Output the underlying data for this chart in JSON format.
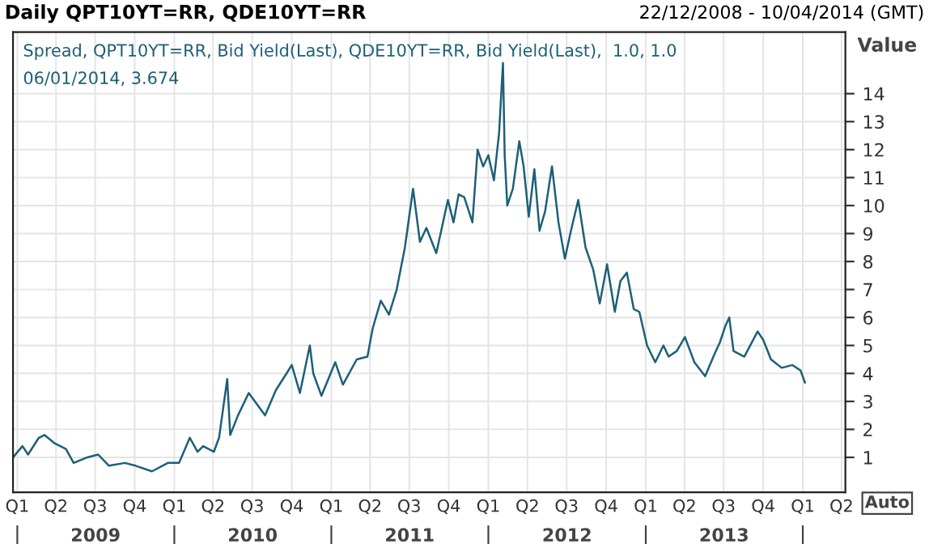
{
  "chart_data": {
    "type": "line",
    "title": "Daily QPT10YT=RR, QDE10YT=RR",
    "subtitle": "22/12/2008 - 10/04/2014 (GMT)",
    "ylabel": "Value",
    "annotations": [
      "06/01/2014, 3.674",
      "Auto"
    ],
    "xlim": [
      "2008-12-22",
      "2014-04-10"
    ],
    "ylim": [
      -0.25,
      16.2
    ],
    "yticks": [
      1,
      2,
      3,
      4,
      5,
      6,
      7,
      8,
      9,
      10,
      11,
      12,
      13,
      14
    ],
    "xticks": [
      {
        "value": "2009-01-01",
        "label": "Q1"
      },
      {
        "value": "2009-04-01",
        "label": "Q2"
      },
      {
        "value": "2009-07-01",
        "label": "Q3"
      },
      {
        "value": "2009-10-01",
        "label": "Q4"
      },
      {
        "value": "2010-01-01",
        "label": "Q1"
      },
      {
        "value": "2010-04-01",
        "label": "Q2"
      },
      {
        "value": "2010-07-01",
        "label": "Q3"
      },
      {
        "value": "2010-10-01",
        "label": "Q4"
      },
      {
        "value": "2011-01-01",
        "label": "Q1"
      },
      {
        "value": "2011-04-01",
        "label": "Q2"
      },
      {
        "value": "2011-07-01",
        "label": "Q3"
      },
      {
        "value": "2011-10-01",
        "label": "Q4"
      },
      {
        "value": "2012-01-01",
        "label": "Q1"
      },
      {
        "value": "2012-04-01",
        "label": "Q2"
      },
      {
        "value": "2012-07-01",
        "label": "Q3"
      },
      {
        "value": "2012-10-01",
        "label": "Q4"
      },
      {
        "value": "2013-01-01",
        "label": "Q1"
      },
      {
        "value": "2013-04-01",
        "label": "Q2"
      },
      {
        "value": "2013-07-01",
        "label": "Q3"
      },
      {
        "value": "2013-10-01",
        "label": "Q4"
      },
      {
        "value": "2014-01-01",
        "label": "Q1"
      },
      {
        "value": "2014-04-01",
        "label": "Q2"
      }
    ],
    "x2lim": [
      "2008-12-22",
      "2014-04-10"
    ],
    "x2ticks": [
      {
        "value": "2009-01-01",
        "label": null
      },
      {
        "value": "2009-07-02",
        "label": "2009"
      },
      {
        "value": "2010-01-01",
        "label": null
      },
      {
        "value": "2010-07-02",
        "label": "2010"
      },
      {
        "value": "2011-01-01",
        "label": null
      },
      {
        "value": "2011-07-02",
        "label": "2011"
      },
      {
        "value": "2012-01-01",
        "label": null
      },
      {
        "value": "2012-07-02",
        "label": "2012"
      },
      {
        "value": "2013-01-01",
        "label": null
      },
      {
        "value": "2013-07-02",
        "label": "2013"
      },
      {
        "value": "2014-01-01",
        "label": null
      }
    ],
    "grid": true,
    "series": [
      {
        "name": "Spread, QPT10YT=RR, Bid Yield(Last), QDE10YT=RR, Bid Yield(Last),  1.0, 1.0",
        "color": "#1d5f78",
        "x": [
          "2008-12-22",
          "2009-01-13",
          "2009-01-26",
          "2009-02-20",
          "2009-03-05",
          "2009-03-29",
          "2009-04-24",
          "2009-05-12",
          "2009-06-13",
          "2009-07-08",
          "2009-08-02",
          "2009-09-08",
          "2009-10-03",
          "2009-11-10",
          "2009-12-17",
          "2010-01-12",
          "2010-02-06",
          "2010-02-24",
          "2010-03-09",
          "2010-04-03",
          "2010-04-15",
          "2010-05-04",
          "2010-05-11",
          "2010-05-29",
          "2010-06-23",
          "2010-07-12",
          "2010-07-31",
          "2010-08-25",
          "2010-09-19",
          "2010-10-01",
          "2010-10-20",
          "2010-11-12",
          "2010-11-20",
          "2010-12-09",
          "2011-01-10",
          "2011-01-28",
          "2011-03-01",
          "2011-03-26",
          "2011-04-07",
          "2011-04-26",
          "2011-05-15",
          "2011-06-02",
          "2011-06-21",
          "2011-07-10",
          "2011-07-26",
          "2011-08-10",
          "2011-09-02",
          "2011-09-29",
          "2011-10-12",
          "2011-10-24",
          "2011-11-06",
          "2011-11-25",
          "2011-12-07",
          "2011-12-20",
          "2012-01-01",
          "2012-01-14",
          "2012-01-26",
          "2012-02-04",
          "2012-02-08",
          "2012-02-14",
          "2012-02-27",
          "2012-03-13",
          "2012-03-23",
          "2012-04-04",
          "2012-04-17",
          "2012-04-29",
          "2012-05-12",
          "2012-05-28",
          "2012-06-12",
          "2012-06-27",
          "2012-07-11",
          "2012-07-28",
          "2012-08-14",
          "2012-09-01",
          "2012-09-16",
          "2012-10-03",
          "2012-10-21",
          "2012-11-03",
          "2012-11-18",
          "2012-12-04",
          "2012-12-17",
          "2013-01-04",
          "2013-01-23",
          "2013-02-11",
          "2013-02-23",
          "2013-03-14",
          "2013-04-02",
          "2013-04-24",
          "2013-05-19",
          "2013-06-10",
          "2013-06-22",
          "2013-07-05",
          "2013-07-14",
          "2013-07-24",
          "2013-08-18",
          "2013-09-18",
          "2013-10-01",
          "2013-10-19",
          "2013-11-13",
          "2013-12-08",
          "2013-12-27",
          "2014-01-06"
        ],
        "values": [
          1.0,
          1.4,
          1.1,
          1.7,
          1.8,
          1.5,
          1.3,
          0.8,
          1.0,
          1.1,
          0.7,
          0.8,
          0.7,
          0.5,
          0.8,
          0.8,
          1.7,
          1.2,
          1.4,
          1.2,
          1.7,
          3.8,
          1.8,
          2.5,
          3.3,
          2.9,
          2.5,
          3.4,
          4.0,
          4.3,
          3.3,
          5.0,
          4.0,
          3.2,
          4.4,
          3.6,
          4.5,
          4.6,
          5.6,
          6.6,
          6.1,
          7.0,
          8.5,
          10.6,
          8.7,
          9.2,
          8.3,
          10.2,
          9.4,
          10.4,
          10.3,
          9.4,
          12.0,
          11.4,
          11.8,
          10.9,
          12.6,
          15.1,
          11.8,
          10.0,
          10.6,
          12.3,
          11.4,
          9.6,
          11.3,
          9.1,
          9.8,
          11.4,
          9.4,
          8.1,
          9.1,
          10.2,
          8.5,
          7.7,
          6.5,
          7.9,
          6.2,
          7.3,
          7.6,
          6.3,
          6.2,
          5.0,
          4.4,
          5.0,
          4.6,
          4.8,
          5.3,
          4.4,
          3.9,
          4.7,
          5.1,
          5.7,
          6.0,
          4.8,
          4.6,
          5.5,
          5.2,
          4.5,
          4.2,
          4.3,
          4.1,
          3.674
        ]
      }
    ]
  }
}
